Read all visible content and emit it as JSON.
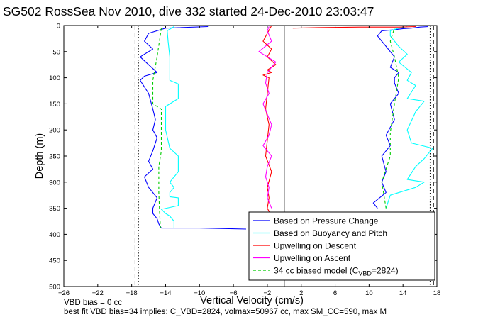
{
  "title": "SG502 RossSea Nov 2010, dive 332 started 24-Dec-2010 23:03:47",
  "footer": {
    "line1": "VBD bias = 0 cc",
    "line2": "best fit VBD bias=34 implies: C_VBD=2824, volmax=50967 cc, max SM_CC=590, max M"
  },
  "chart_data": {
    "type": "line",
    "title": "SG502 RossSea Nov 2010, dive 332 started 24-Dec-2010 23:03:47",
    "xlabel": "Vertical Velocity (cm/s)",
    "ylabel": "Depth (m)",
    "xlim": [
      -26,
      18
    ],
    "ylim": [
      0,
      500
    ],
    "y_reversed": true,
    "xticks": [
      -26,
      -22,
      -18,
      -14,
      -10,
      -6,
      -2,
      2,
      6,
      10,
      14,
      18
    ],
    "yticks": [
      0,
      50,
      100,
      150,
      200,
      250,
      300,
      350,
      400,
      450,
      500
    ],
    "grid": false,
    "reference_lines": {
      "dashed_vertical": [
        -17.6,
        17.6
      ],
      "dotted_vertical": [
        -17.2,
        17.2
      ],
      "solid_vertical": [
        0
      ]
    },
    "legend": {
      "placement": "bottom-right",
      "entries": [
        {
          "label": "Based on Pressure Change",
          "color": "#0000ff",
          "style": "solid"
        },
        {
          "label": "Based on Buoyancy and Pitch",
          "color": "#00ffff",
          "style": "solid"
        },
        {
          "label": "Upwelling on Descent",
          "color": "#ff0000",
          "style": "solid"
        },
        {
          "label": "Upwelling on Ascent",
          "color": "#ff00ff",
          "style": "solid"
        },
        {
          "label": "34 cc biased model (C",
          "sub": "VBD",
          "suffix": "=2824)",
          "color": "#00cc00",
          "style": "dashed"
        }
      ]
    },
    "series": [
      {
        "name": "Based on Pressure Change (descent)",
        "color": "#0000ff",
        "x": [
          -9.0,
          -14.0,
          -16.0,
          -16.5,
          -15.5,
          -17.0,
          -16.0,
          -15.0,
          -16.5,
          -17.0,
          -16.0,
          -15.5,
          -15.2,
          -15.5,
          -15.0,
          -15.5,
          -16.0,
          -15.5,
          -16.5,
          -16.0,
          -15.0,
          -15.5,
          -15.5,
          -15.0,
          -14.8,
          -14.5
        ],
        "y": [
          2,
          5,
          15,
          30,
          45,
          60,
          75,
          90,
          97,
          105,
          130,
          160,
          180,
          200,
          215,
          240,
          260,
          275,
          290,
          310,
          330,
          350,
          360,
          370,
          380,
          388
        ]
      },
      {
        "name": "Based on Buoyancy and Pitch (descent)",
        "color": "#00ffff",
        "x": [
          -13.0,
          -13.8,
          -13.7,
          -13.5,
          -13.5,
          -12.5,
          -12.5,
          -14.0,
          -14.0,
          -13.5,
          -12.5,
          -12.5,
          -13.5,
          -13.0,
          -13.5,
          -13.5,
          -12.5,
          -12.5,
          -14.5,
          -14.0,
          -13.5,
          -13.0,
          -13.0,
          -13.0
        ],
        "y": [
          2,
          10,
          30,
          60,
          105,
          112,
          140,
          155,
          200,
          235,
          250,
          280,
          300,
          310,
          320,
          328,
          330,
          345,
          352,
          360,
          365,
          375,
          385,
          388
        ]
      },
      {
        "name": "34 cc biased model (descent)",
        "color": "#00cc00",
        "x": [
          -14.5,
          -15.0,
          -15.5,
          -15.5,
          -14.5,
          -14.5,
          -14.8,
          -14.8,
          -14.7,
          -14.6
        ],
        "y": [
          5,
          60,
          105,
          150,
          160,
          240,
          270,
          320,
          360,
          388
        ]
      },
      {
        "name": "Based on Pressure Change (ascent)",
        "color": "#0000ff",
        "x": [
          11.0,
          10.5,
          12.0,
          11.5,
          12.0,
          11.5,
          12.5,
          12.0,
          13.0,
          12.5,
          13.5,
          13.0,
          13.0,
          13.5,
          12.5,
          13.0,
          12.0,
          11.5,
          11.0,
          11.5,
          13.0,
          14.0,
          15.0,
          16.0,
          17.0
        ],
        "y": [
          350,
          340,
          320,
          300,
          280,
          250,
          230,
          210,
          180,
          150,
          130,
          110,
          100,
          90,
          80,
          60,
          40,
          30,
          20,
          10,
          8,
          6,
          5,
          3,
          2
        ]
      },
      {
        "name": "Based on Buoyancy and Pitch (ascent)",
        "color": "#00ffff",
        "x": [
          12.0,
          12.5,
          15.5,
          16.5,
          14.5,
          15.5,
          16.5,
          17.5,
          15.0,
          14.5,
          15.5,
          16.5,
          14.5,
          15.5,
          14.5,
          15.0,
          13.5,
          14.5,
          13.5,
          12.5,
          12.5,
          13.5,
          14.5
        ],
        "y": [
          350,
          325,
          310,
          300,
          295,
          270,
          255,
          235,
          225,
          200,
          165,
          145,
          140,
          115,
          105,
          90,
          70,
          55,
          40,
          20,
          10,
          5,
          2
        ]
      },
      {
        "name": "34 cc biased model (ascent)",
        "color": "#00cc00",
        "x": [
          12.0,
          11.5,
          12.5,
          12.5,
          13.0,
          13.5,
          13.0,
          12.5,
          13.0
        ],
        "y": [
          350,
          300,
          250,
          205,
          150,
          100,
          60,
          30,
          5
        ]
      },
      {
        "name": "Upwelling on Descent",
        "color": "#ff0000",
        "x": [
          -1.5,
          -2.0,
          -2.5,
          -1.5,
          -2.0,
          -1.0,
          -2.0,
          -1.5,
          -2.5,
          -1.8,
          -2.0,
          -2.2,
          -1.8,
          -2.0,
          -2.2,
          -1.5,
          -2.0,
          -1.8,
          -2.0,
          -1.5,
          -2.0,
          -1.8
        ],
        "y": [
          0,
          15,
          30,
          45,
          60,
          75,
          85,
          90,
          95,
          100,
          130,
          160,
          190,
          220,
          250,
          280,
          310,
          330,
          350,
          365,
          380,
          388
        ]
      },
      {
        "name": "Upwelling on Ascent",
        "color": "#ff00ff",
        "x": [
          -1.5,
          -2.0,
          -1.8,
          -2.2,
          -2.0,
          -1.5,
          -2.5,
          -1.8,
          -1.5,
          -2.0,
          -2.5,
          -1.8,
          -2.2,
          -2.0,
          -1.0,
          -3.0,
          -1.5,
          -2.0,
          -1.8
        ],
        "y": [
          350,
          330,
          310,
          290,
          270,
          250,
          230,
          210,
          190,
          170,
          150,
          130,
          110,
          90,
          70,
          50,
          30,
          10,
          2
        ]
      },
      {
        "name": "Surface segment",
        "color": "#ff0000",
        "x": [
          1.0,
          4.0,
          9.0,
          13.5,
          15.5
        ],
        "y": [
          5,
          4,
          3,
          3,
          2
        ]
      },
      {
        "name": "Bottom turn",
        "color": "#0000ff",
        "x": [
          -14.5,
          -10.0,
          -7.0,
          -4.5
        ],
        "y": [
          388,
          388,
          389,
          390
        ]
      }
    ]
  }
}
